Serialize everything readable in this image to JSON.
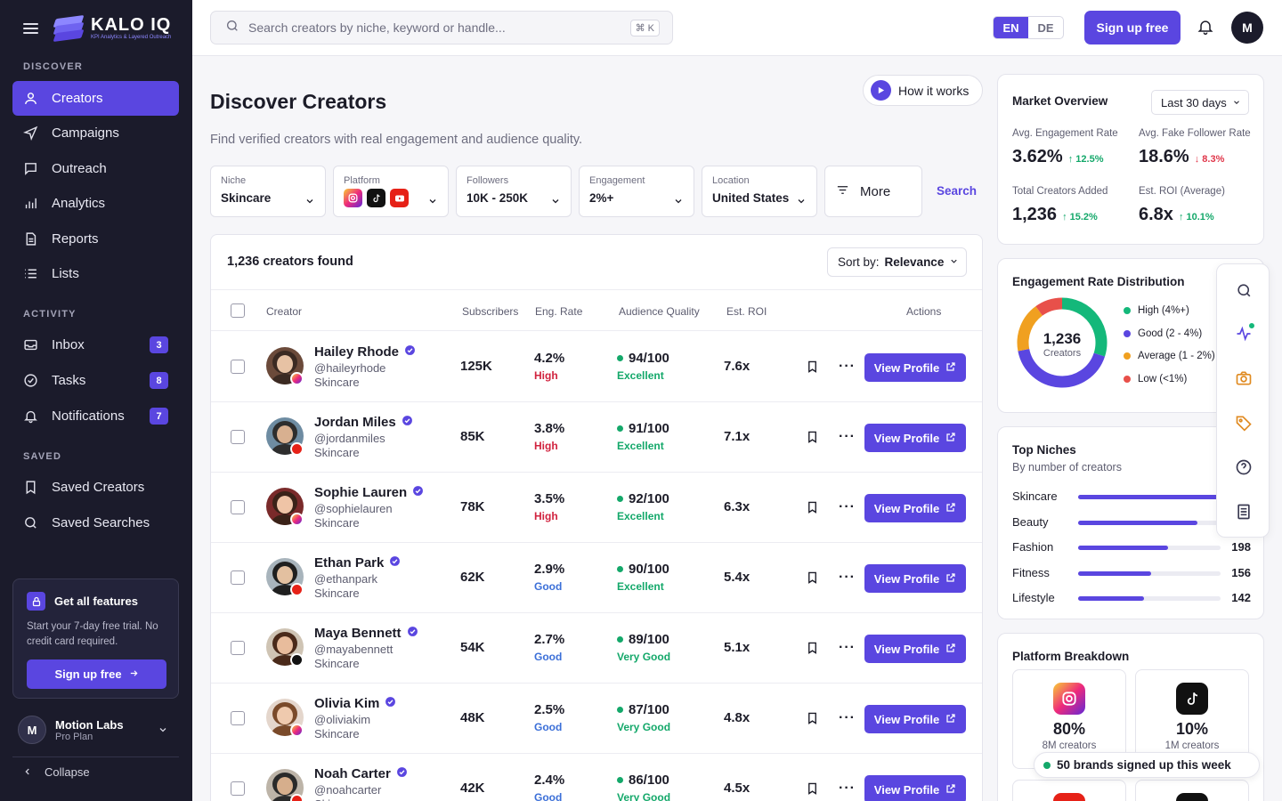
{
  "app": {
    "logo_name": "KALO IQ",
    "logo_tagline": "KPI Analytics & Layered Outreach"
  },
  "sidebar": {
    "discover_label": "DISCOVER",
    "activity_label": "ACTIVITY",
    "saved_label": "SAVED",
    "discover_items": [
      {
        "label": "Creators",
        "icon": "user-icon",
        "active": true
      },
      {
        "label": "Campaigns",
        "icon": "send-icon"
      },
      {
        "label": "Outreach",
        "icon": "message-icon"
      },
      {
        "label": "Analytics",
        "icon": "bar-chart-icon"
      },
      {
        "label": "Reports",
        "icon": "document-icon"
      },
      {
        "label": "Lists",
        "icon": "list-icon"
      }
    ],
    "activity_items": [
      {
        "label": "Inbox",
        "badge": "3",
        "icon": "inbox-icon"
      },
      {
        "label": "Tasks",
        "badge": "8",
        "icon": "check-circle-icon"
      },
      {
        "label": "Notifications",
        "badge": "7",
        "icon": "bell-icon"
      }
    ],
    "saved_items": [
      {
        "label": "Saved Creators",
        "icon": "bookmark-icon"
      },
      {
        "label": "Saved Searches",
        "icon": "search-icon"
      }
    ],
    "promo": {
      "title": "Get all features",
      "text": "Start your 7-day free trial. No credit card required.",
      "button": "Sign up free"
    },
    "account": {
      "initial": "M",
      "name": "Motion Labs",
      "plan": "Pro Plan"
    },
    "collapse_label": "Collapse"
  },
  "topbar": {
    "search_placeholder": "Search creators by niche, keyword or handle...",
    "shortcut": "⌘ K",
    "lang_active": "EN",
    "lang_other": "DE",
    "signup_label": "Sign up free",
    "avatar_initial": "M"
  },
  "main": {
    "title": "Discover Creators",
    "subtitle": "Find verified creators with real engagement and audience quality.",
    "how_it_works": "How it works",
    "filters": {
      "niche_label": "Niche",
      "niche_value": "Skincare",
      "platform_label": "Platform",
      "followers_label": "Followers",
      "followers_value": "10K - 250K",
      "engagement_label": "Engagement",
      "engagement_value": "2%+",
      "location_label": "Location",
      "location_value": "United States",
      "more_label": "More",
      "search_label": "Search"
    },
    "results_count": "1,236 creators found",
    "sort_prefix": "Sort by:",
    "sort_value": "Relevance",
    "columns": {
      "creator": "Creator",
      "subscribers": "Subscribers",
      "eng_rate": "Eng. Rate",
      "audience_quality": "Audience Quality",
      "est_roi": "Est. ROI",
      "actions": "Actions"
    },
    "view_profile_label": "View Profile",
    "creators": [
      {
        "name": "Hailey Rhode",
        "handle": "@haileyrhode",
        "niche": "Skincare",
        "platform": "instagram",
        "subs": "125K",
        "eng": "4.2%",
        "eng_label": "High",
        "quality": "94/100",
        "quality_label": "Excellent",
        "roi": "7.6x"
      },
      {
        "name": "Jordan Miles",
        "handle": "@jordanmiles",
        "niche": "Skincare",
        "platform": "youtube",
        "subs": "85K",
        "eng": "3.8%",
        "eng_label": "High",
        "quality": "91/100",
        "quality_label": "Excellent",
        "roi": "7.1x"
      },
      {
        "name": "Sophie Lauren",
        "handle": "@sophielauren",
        "niche": "Skincare",
        "platform": "instagram",
        "subs": "78K",
        "eng": "3.5%",
        "eng_label": "High",
        "quality": "92/100",
        "quality_label": "Excellent",
        "roi": "6.3x"
      },
      {
        "name": "Ethan Park",
        "handle": "@ethanpark",
        "niche": "Skincare",
        "platform": "youtube",
        "subs": "62K",
        "eng": "2.9%",
        "eng_label": "Good",
        "quality": "90/100",
        "quality_label": "Excellent",
        "roi": "5.4x"
      },
      {
        "name": "Maya Bennett",
        "handle": "@mayabennett",
        "niche": "Skincare",
        "platform": "tiktok",
        "subs": "54K",
        "eng": "2.7%",
        "eng_label": "Good",
        "quality": "89/100",
        "quality_label": "Very Good",
        "roi": "5.1x"
      },
      {
        "name": "Olivia Kim",
        "handle": "@oliviakim",
        "niche": "Skincare",
        "platform": "instagram",
        "subs": "48K",
        "eng": "2.5%",
        "eng_label": "Good",
        "quality": "87/100",
        "quality_label": "Very Good",
        "roi": "4.8x"
      },
      {
        "name": "Noah Carter",
        "handle": "@noahcarter",
        "niche": "Skincare",
        "platform": "youtube",
        "subs": "42K",
        "eng": "2.4%",
        "eng_label": "Good",
        "quality": "86/100",
        "quality_label": "Very Good",
        "roi": "4.5x"
      }
    ]
  },
  "market": {
    "title": "Market Overview",
    "range": "Last 30 days",
    "stats": [
      {
        "label": "Avg. Engagement Rate",
        "value": "3.62%",
        "delta": "12.5%",
        "dir": "up"
      },
      {
        "label": "Avg. Fake Follower Rate",
        "value": "18.6%",
        "delta": "8.3%",
        "dir": "down"
      },
      {
        "label": "Total Creators Added",
        "value": "1,236",
        "delta": "15.2%",
        "dir": "up"
      },
      {
        "label": "Est. ROI (Average)",
        "value": "6.8x",
        "delta": "10.1%",
        "dir": "up"
      }
    ]
  },
  "distribution": {
    "title": "Engagement Rate Distribution",
    "center_value": "1,236",
    "center_label": "Creators",
    "legend": [
      {
        "label": "High (4%+)",
        "color": "#14b87a",
        "share": 0.3
      },
      {
        "label": "Good (2 - 4%)",
        "color": "#5a46e0",
        "share": 0.42
      },
      {
        "label": "Average (1 - 2%)",
        "color": "#f0a020",
        "share": 0.18
      },
      {
        "label": "Low (<1%)",
        "color": "#e8504a",
        "share": 0.1
      }
    ]
  },
  "niches": {
    "title": "Top Niches",
    "subtitle": "By number of creators",
    "items": [
      {
        "name": "Skincare",
        "count": "",
        "share": 0.98
      },
      {
        "name": "Beauty",
        "count": "",
        "share": 0.84
      },
      {
        "name": "Fashion",
        "count": "198",
        "share": 0.63
      },
      {
        "name": "Fitness",
        "count": "156",
        "share": 0.51
      },
      {
        "name": "Lifestyle",
        "count": "142",
        "share": 0.46
      }
    ]
  },
  "platforms": {
    "title": "Platform Breakdown",
    "items": [
      {
        "name": "instagram",
        "percent": "80%",
        "count": "8M creators"
      },
      {
        "name": "tiktok",
        "percent": "10%",
        "count": "1M creators"
      }
    ]
  },
  "toast": "50 brands signed up this week"
}
